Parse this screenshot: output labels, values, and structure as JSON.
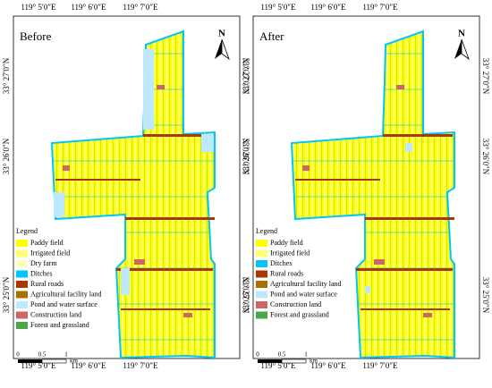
{
  "panels": [
    {
      "title": "Before",
      "north": "N",
      "top_labels": [
        "119° 5′0″E",
        "119° 6′0″E",
        "119° 7′0″E"
      ],
      "bottom_labels": [
        "119° 5′0″E",
        "119° 6′0″E",
        "119° 7′0″E"
      ],
      "left_labels": [
        "33° 27′0″N",
        "33° 26′0″N",
        "33° 25′0″N"
      ],
      "right_labels": [
        "33° 27′0″N",
        "33° 26′0″N",
        "33° 25′0″N"
      ],
      "legend": {
        "title": "Legend",
        "items": [
          {
            "label": "Paddy field",
            "color": "#ffff00"
          },
          {
            "label": "Irrigated field",
            "color": "#ffff73"
          },
          {
            "label": "Dry farm",
            "color": "#ffffbe"
          },
          {
            "label": "Ditches",
            "color": "#00c5ff"
          },
          {
            "label": "Rural roads",
            "color": "#a83800"
          },
          {
            "label": "Agricultural facility land",
            "color": "#a87000"
          },
          {
            "label": "Pond and water surface",
            "color": "#bee8ff"
          },
          {
            "label": "Construction land",
            "color": "#cd6666"
          },
          {
            "label": "Forest and grassland",
            "color": "#4ca64c"
          }
        ]
      },
      "scale": {
        "labels": [
          "0",
          "0.5",
          "1"
        ],
        "unit": "km"
      }
    },
    {
      "title": "After",
      "north": "N",
      "top_labels": [
        "119° 5′0″E",
        "119° 6′0″E",
        "119° 7′0″E"
      ],
      "bottom_labels": [
        "119° 5′0″E",
        "119° 6′0″E",
        "119° 7′0″E"
      ],
      "left_labels": [
        "33° 27′0″N",
        "33° 26′0″N",
        "33° 25′0″N"
      ],
      "right_labels": [
        "33° 27′0″N",
        "33° 26′0″N",
        "33° 25′0″N"
      ],
      "legend": {
        "title": "Legend",
        "items": [
          {
            "label": "Paddy field",
            "color": "#ffff00"
          },
          {
            "label": "Irrigated field",
            "color": "#ffff73"
          },
          {
            "label": "Ditches",
            "color": "#00c5ff"
          },
          {
            "label": "Rural roads",
            "color": "#a83800"
          },
          {
            "label": "Agricultural facility land",
            "color": "#a87000"
          },
          {
            "label": "Pond and water surface",
            "color": "#bee8ff"
          },
          {
            "label": "Construction land",
            "color": "#cd6666"
          },
          {
            "label": "Forest and grassland",
            "color": "#4ca64c"
          }
        ]
      },
      "scale": {
        "labels": [
          "0",
          "0.5",
          "1"
        ],
        "unit": "km"
      }
    }
  ]
}
